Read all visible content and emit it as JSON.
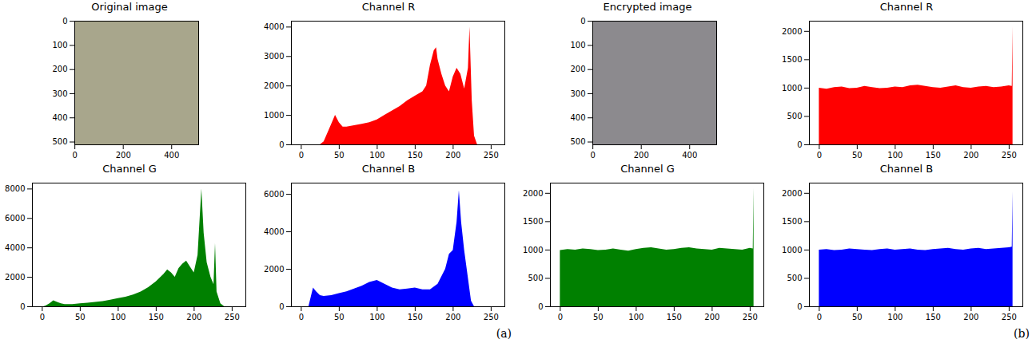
{
  "chart_data": [
    {
      "type": "image",
      "title": "Original image",
      "color": "#a8a68c",
      "xlim": [
        -0.5,
        511.5
      ],
      "xticks": [
        0,
        200,
        400
      ],
      "ylim": [
        511.5,
        -0.5
      ],
      "yticks": [
        0,
        100,
        200,
        300,
        400,
        500
      ]
    },
    {
      "type": "area",
      "title": "Channel R",
      "color": "#ff0000",
      "x": [
        25,
        30,
        40,
        45,
        50,
        55,
        60,
        70,
        80,
        90,
        100,
        110,
        120,
        130,
        140,
        150,
        160,
        165,
        170,
        175,
        178,
        180,
        185,
        190,
        195,
        200,
        205,
        210,
        215,
        220,
        222,
        225,
        228,
        232
      ],
      "values": [
        0,
        100,
        700,
        1000,
        750,
        600,
        600,
        650,
        700,
        750,
        850,
        1000,
        1150,
        1300,
        1500,
        1650,
        1800,
        2000,
        2700,
        3200,
        3300,
        2900,
        2400,
        2000,
        1800,
        2300,
        2600,
        2400,
        1900,
        2600,
        4000,
        1500,
        300,
        0
      ],
      "xlim": [
        -13,
        268
      ],
      "xticks": [
        0,
        50,
        100,
        150,
        200,
        250
      ],
      "ylim": [
        0,
        4200
      ],
      "yticks": [
        0,
        1000,
        2000,
        3000,
        4000
      ]
    },
    {
      "type": "image",
      "title": "Encrypted image",
      "color": "#8c8a8e",
      "xlim": [
        -0.5,
        511.5
      ],
      "xticks": [
        0,
        200,
        400
      ],
      "ylim": [
        511.5,
        -0.5
      ],
      "yticks": [
        0,
        100,
        200,
        300,
        400,
        500
      ]
    },
    {
      "type": "area",
      "title": "Channel R",
      "color": "#ff0000",
      "x": [
        0,
        10,
        20,
        30,
        40,
        50,
        60,
        70,
        80,
        90,
        100,
        110,
        120,
        130,
        140,
        150,
        160,
        170,
        180,
        190,
        200,
        210,
        220,
        230,
        240,
        250,
        254,
        255
      ],
      "values": [
        1000,
        980,
        1010,
        1020,
        990,
        1000,
        1030,
        1010,
        990,
        1000,
        1020,
        1010,
        1040,
        1050,
        1030,
        1010,
        1000,
        1020,
        1040,
        1010,
        1000,
        1020,
        1030,
        1010,
        1020,
        1040,
        1030,
        2080
      ],
      "xlim": [
        -13,
        268
      ],
      "xticks": [
        0,
        50,
        100,
        150,
        200,
        250
      ],
      "ylim": [
        0,
        2180
      ],
      "yticks": [
        0,
        500,
        1000,
        1500,
        2000
      ]
    },
    {
      "type": "area",
      "title": "Channel G",
      "color": "#008000",
      "x": [
        2,
        5,
        10,
        15,
        20,
        25,
        30,
        40,
        50,
        60,
        70,
        80,
        90,
        100,
        110,
        120,
        130,
        140,
        150,
        160,
        165,
        170,
        175,
        180,
        185,
        190,
        195,
        200,
        205,
        210,
        213,
        217,
        222,
        226,
        228,
        230,
        235,
        240
      ],
      "values": [
        0,
        50,
        200,
        400,
        300,
        200,
        150,
        150,
        200,
        250,
        300,
        350,
        450,
        550,
        650,
        800,
        1000,
        1300,
        1700,
        2200,
        2500,
        2300,
        2000,
        2600,
        2900,
        3100,
        2700,
        2300,
        3500,
        8000,
        5000,
        3000,
        2000,
        1500,
        4300,
        1000,
        200,
        0
      ],
      "xlim": [
        -13,
        268
      ],
      "xticks": [
        0,
        50,
        100,
        150,
        200,
        250
      ],
      "ylim": [
        0,
        8400
      ],
      "yticks": [
        0,
        2000,
        4000,
        6000,
        8000
      ]
    },
    {
      "type": "area",
      "title": "Channel B",
      "color": "#0000ff",
      "x": [
        10,
        13,
        16,
        20,
        25,
        30,
        40,
        50,
        60,
        70,
        80,
        90,
        100,
        110,
        120,
        130,
        140,
        150,
        160,
        170,
        180,
        190,
        195,
        200,
        205,
        208,
        211,
        215,
        220,
        224,
        228
      ],
      "values": [
        0,
        500,
        1000,
        800,
        600,
        550,
        600,
        700,
        800,
        950,
        1100,
        1300,
        1400,
        1200,
        1000,
        900,
        950,
        1000,
        900,
        900,
        1200,
        2000,
        2800,
        3000,
        4500,
        6200,
        4500,
        3000,
        1500,
        300,
        0
      ],
      "xlim": [
        -13,
        268
      ],
      "xticks": [
        0,
        50,
        100,
        150,
        200,
        250
      ],
      "ylim": [
        0,
        6600
      ],
      "yticks": [
        0,
        2000,
        4000,
        6000
      ]
    },
    {
      "type": "area",
      "title": "Channel G",
      "color": "#008000",
      "x": [
        0,
        10,
        20,
        30,
        40,
        50,
        60,
        70,
        80,
        90,
        100,
        110,
        120,
        130,
        140,
        150,
        160,
        170,
        180,
        190,
        200,
        210,
        220,
        230,
        240,
        250,
        254,
        255
      ],
      "values": [
        990,
        1010,
        1000,
        1020,
        1010,
        990,
        1000,
        1020,
        1000,
        980,
        1010,
        1030,
        1040,
        1020,
        1000,
        1010,
        1030,
        1040,
        1020,
        1010,
        1000,
        1030,
        1020,
        1010,
        1000,
        1030,
        1020,
        2090
      ],
      "xlim": [
        -13,
        268
      ],
      "xticks": [
        0,
        50,
        100,
        150,
        200,
        250
      ],
      "ylim": [
        0,
        2180
      ],
      "yticks": [
        0,
        500,
        1000,
        1500,
        2000
      ]
    },
    {
      "type": "area",
      "title": "Channel B",
      "color": "#0000ff",
      "x": [
        0,
        10,
        20,
        30,
        40,
        50,
        60,
        70,
        80,
        90,
        100,
        110,
        120,
        130,
        140,
        150,
        160,
        170,
        180,
        190,
        200,
        210,
        220,
        230,
        240,
        250,
        254,
        255
      ],
      "values": [
        1000,
        1010,
        990,
        1000,
        1020,
        1010,
        1000,
        990,
        1010,
        1020,
        1000,
        1010,
        1020,
        1000,
        990,
        1010,
        1020,
        1030,
        1010,
        1000,
        1020,
        1030,
        1010,
        1020,
        1030,
        1040,
        1050,
        2030
      ],
      "xlim": [
        -13,
        268
      ],
      "xticks": [
        0,
        50,
        100,
        150,
        200,
        250
      ],
      "ylim": [
        0,
        2180
      ],
      "yticks": [
        0,
        500,
        1000,
        1500,
        2000
      ]
    }
  ],
  "labels": [
    "(a)",
    "(b)"
  ]
}
